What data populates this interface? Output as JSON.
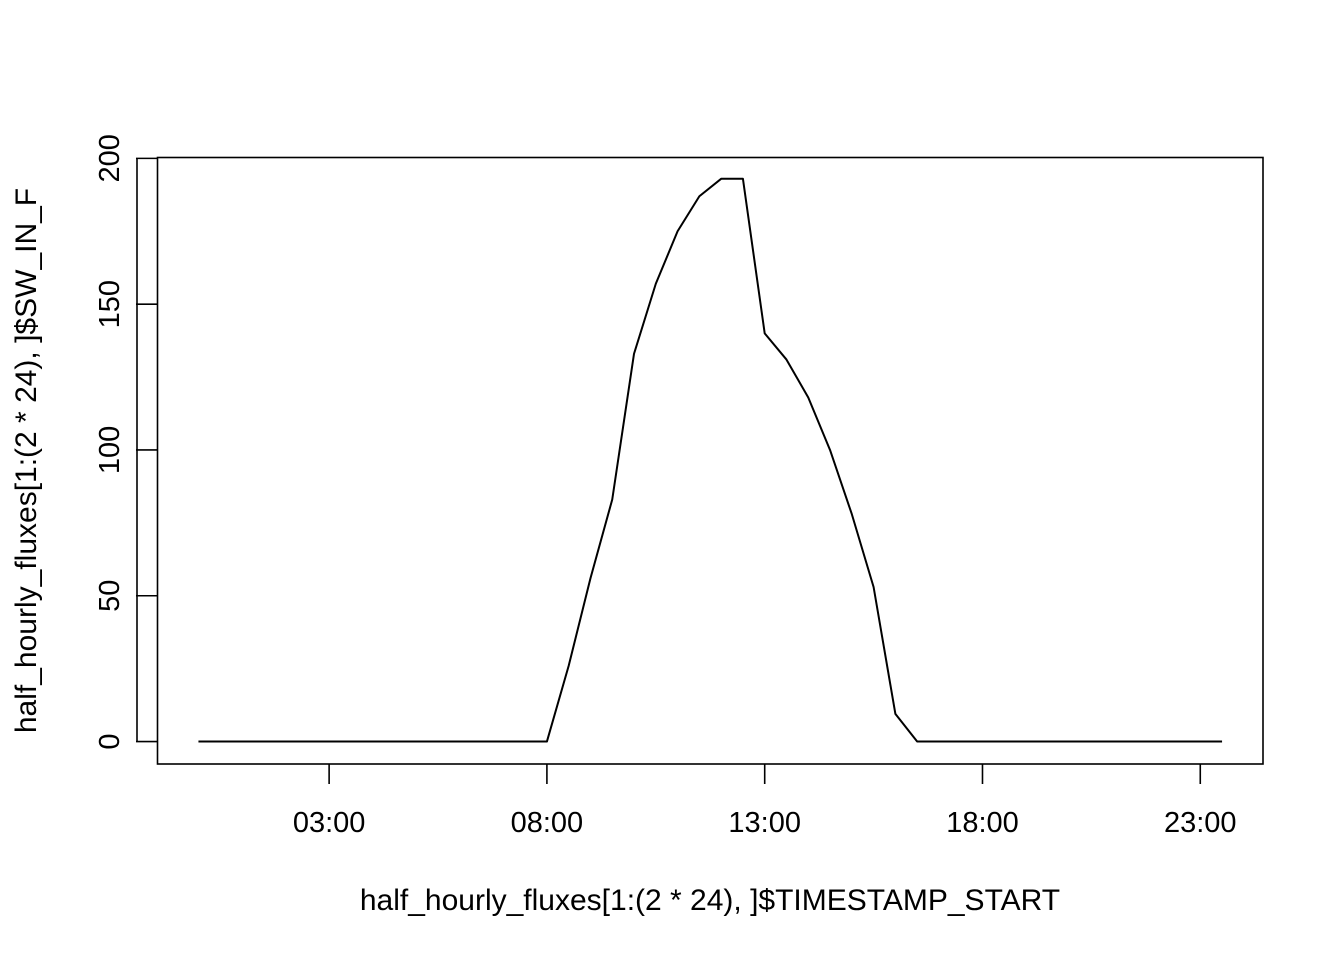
{
  "chart_data": {
    "type": "line",
    "title": "",
    "xlabel": "half_hourly_fluxes[1:(2 * 24), ]$TIMESTAMP_START",
    "ylabel": "half_hourly_fluxes[1:(2 * 24), ]$SW_IN_F",
    "x_tick_labels": [
      "03:00",
      "08:00",
      "13:00",
      "18:00",
      "23:00"
    ],
    "x_tick_hours": [
      3,
      8,
      13,
      18,
      23
    ],
    "y_ticks": [
      0,
      50,
      100,
      150,
      200
    ],
    "y_tick_labels": [
      "0",
      "50",
      "100",
      "150",
      "200"
    ],
    "xlim_hours": [
      -0.94,
      24.44
    ],
    "ylim": [
      -7.7,
      200.3
    ],
    "grid": false,
    "series": [
      {
        "x_hours": [
          0,
          0.5,
          1,
          1.5,
          2,
          2.5,
          3,
          3.5,
          4,
          4.5,
          5,
          5.5,
          6,
          6.5,
          7,
          7.5,
          8,
          8.5,
          9,
          9.5,
          10,
          10.5,
          11,
          11.5,
          12,
          12.5,
          13,
          13.5,
          14,
          14.5,
          15,
          15.5,
          16,
          16.5,
          17,
          17.5,
          18,
          18.5,
          19,
          19.5,
          20,
          20.5,
          21,
          21.5,
          22,
          22.5,
          23,
          23.5
        ],
        "values": [
          0,
          0,
          0,
          0,
          0,
          0,
          0,
          0,
          0,
          0,
          0,
          0,
          0,
          0,
          0,
          0,
          0,
          26,
          56,
          83,
          133,
          157,
          175,
          187,
          193,
          193,
          140,
          131,
          118,
          100,
          78,
          53,
          9.5,
          0,
          0,
          0,
          0,
          0,
          0,
          0,
          0,
          0,
          0,
          0,
          0,
          0,
          0,
          0
        ]
      }
    ]
  }
}
